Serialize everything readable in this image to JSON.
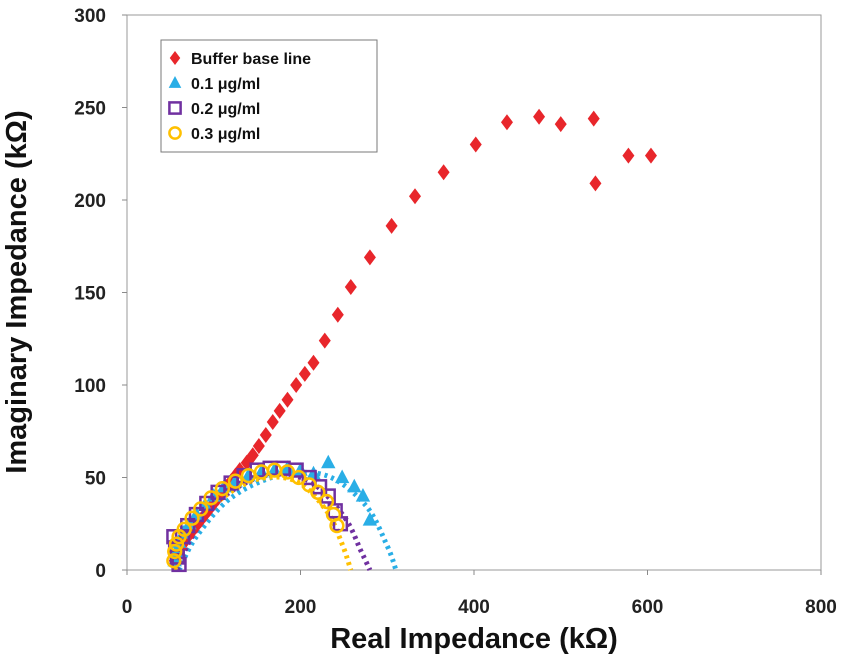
{
  "chart_data": {
    "type": "scatter",
    "title": "",
    "xlabel": "Real Impedance (kΩ)",
    "ylabel": "Imaginary Impedance (kΩ)",
    "xlim": [
      0,
      800
    ],
    "ylim": [
      0,
      300
    ],
    "x_ticks": [
      "0",
      "200",
      "400",
      "600",
      "800"
    ],
    "y_ticks": [
      "0",
      "50",
      "100",
      "150",
      "200",
      "250",
      "300"
    ],
    "grid": false,
    "legend_position": "top-left",
    "series": [
      {
        "name": "Buffer base line",
        "marker": "diamond",
        "color": "#e8262b",
        "points": [
          [
            55,
            5
          ],
          [
            58,
            8
          ],
          [
            62,
            12
          ],
          [
            66,
            15
          ],
          [
            70,
            18
          ],
          [
            75,
            21
          ],
          [
            80,
            24
          ],
          [
            85,
            27
          ],
          [
            90,
            30
          ],
          [
            95,
            33
          ],
          [
            100,
            36
          ],
          [
            105,
            39
          ],
          [
            110,
            42
          ],
          [
            115,
            45
          ],
          [
            120,
            48
          ],
          [
            125,
            51
          ],
          [
            130,
            54
          ],
          [
            138,
            58
          ],
          [
            145,
            62
          ],
          [
            152,
            67
          ],
          [
            160,
            73
          ],
          [
            168,
            80
          ],
          [
            176,
            86
          ],
          [
            185,
            92
          ],
          [
            195,
            100
          ],
          [
            205,
            106
          ],
          [
            215,
            112
          ],
          [
            228,
            124
          ],
          [
            243,
            138
          ],
          [
            258,
            153
          ],
          [
            280,
            169
          ],
          [
            305,
            186
          ],
          [
            332,
            202
          ],
          [
            365,
            215
          ],
          [
            402,
            230
          ],
          [
            438,
            242
          ],
          [
            475,
            245
          ],
          [
            500,
            241
          ],
          [
            538,
            244
          ],
          [
            540,
            209
          ],
          [
            578,
            224
          ],
          [
            604,
            224
          ]
        ]
      },
      {
        "name": "0.1 μg/ml",
        "marker": "triangle",
        "color": "#29aee6",
        "points": [
          [
            55,
            5
          ],
          [
            57,
            10
          ],
          [
            60,
            15
          ],
          [
            65,
            20
          ],
          [
            72,
            25
          ],
          [
            80,
            30
          ],
          [
            90,
            35
          ],
          [
            100,
            40
          ],
          [
            112,
            45
          ],
          [
            125,
            48
          ],
          [
            140,
            51
          ],
          [
            155,
            53
          ],
          [
            170,
            54
          ],
          [
            185,
            55
          ],
          [
            200,
            54
          ],
          [
            215,
            52
          ],
          [
            232,
            58
          ],
          [
            248,
            50
          ],
          [
            262,
            45
          ],
          [
            272,
            40
          ],
          [
            280,
            27
          ]
        ],
        "fit": [
          [
            60,
            0
          ],
          [
            80,
            18
          ],
          [
            120,
            39
          ],
          [
            175,
            51
          ],
          [
            230,
            51
          ],
          [
            275,
            35
          ],
          [
            300,
            13
          ],
          [
            310,
            0
          ]
        ]
      },
      {
        "name": "0.2 μg/ml",
        "marker": "square",
        "color": "#7030a0",
        "points": [
          [
            54,
            18
          ],
          [
            56,
            12
          ],
          [
            58,
            7
          ],
          [
            60,
            3
          ],
          [
            64,
            18
          ],
          [
            70,
            24
          ],
          [
            80,
            30
          ],
          [
            92,
            36
          ],
          [
            105,
            42
          ],
          [
            120,
            47
          ],
          [
            135,
            51
          ],
          [
            150,
            54
          ],
          [
            165,
            55
          ],
          [
            180,
            55
          ],
          [
            195,
            54
          ],
          [
            210,
            50
          ],
          [
            222,
            45
          ],
          [
            232,
            40
          ],
          [
            240,
            32
          ],
          [
            246,
            25
          ]
        ],
        "fit": [
          [
            58,
            0
          ],
          [
            75,
            18
          ],
          [
            110,
            39
          ],
          [
            160,
            51
          ],
          [
            210,
            48
          ],
          [
            250,
            29
          ],
          [
            270,
            10
          ],
          [
            280,
            0
          ]
        ]
      },
      {
        "name": "0.3 μg/ml",
        "marker": "circle",
        "color": "#ffc000",
        "points": [
          [
            54,
            5
          ],
          [
            55,
            10
          ],
          [
            57,
            14
          ],
          [
            60,
            18
          ],
          [
            66,
            22
          ],
          [
            75,
            28
          ],
          [
            85,
            33
          ],
          [
            97,
            39
          ],
          [
            110,
            44
          ],
          [
            125,
            48
          ],
          [
            140,
            51
          ],
          [
            155,
            53
          ],
          [
            170,
            54
          ],
          [
            185,
            53
          ],
          [
            198,
            50
          ],
          [
            210,
            46
          ],
          [
            220,
            42
          ],
          [
            230,
            37
          ],
          [
            238,
            30
          ],
          [
            242,
            24
          ]
        ],
        "fit": [
          [
            55,
            0
          ],
          [
            70,
            17
          ],
          [
            105,
            37
          ],
          [
            150,
            49
          ],
          [
            195,
            48
          ],
          [
            230,
            32
          ],
          [
            248,
            14
          ],
          [
            258,
            0
          ]
        ]
      }
    ]
  }
}
